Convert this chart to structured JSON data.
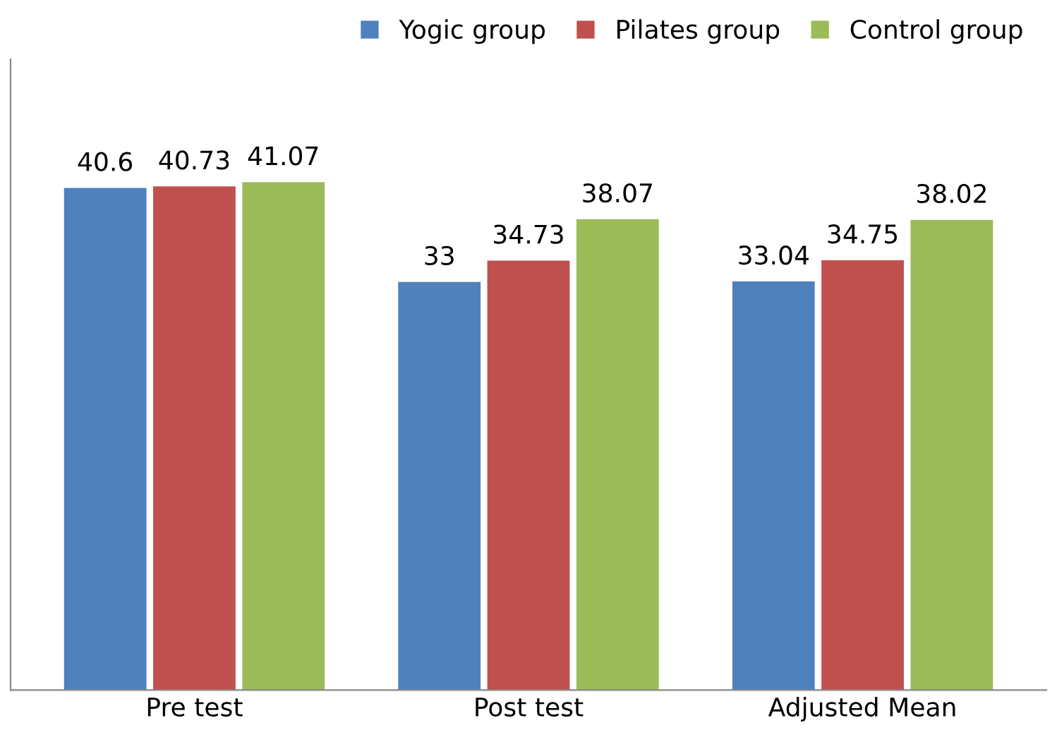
{
  "chart_data": {
    "type": "bar",
    "categories": [
      "Pre test",
      "Post test",
      "Adjusted Mean"
    ],
    "series": [
      {
        "name": "Yogic group",
        "color": "#4f81bd",
        "values": [
          40.6,
          33,
          33.04
        ]
      },
      {
        "name": "Pilates group",
        "color": "#c0504d",
        "values": [
          40.73,
          34.73,
          34.75
        ]
      },
      {
        "name": "Control group",
        "color": "#9bbb59",
        "values": [
          41.07,
          38.07,
          38.02
        ]
      }
    ],
    "ylim": [
      0,
      51
    ],
    "data_labels": true,
    "legend": "top right",
    "grid": false,
    "tick_labels": "x"
  }
}
